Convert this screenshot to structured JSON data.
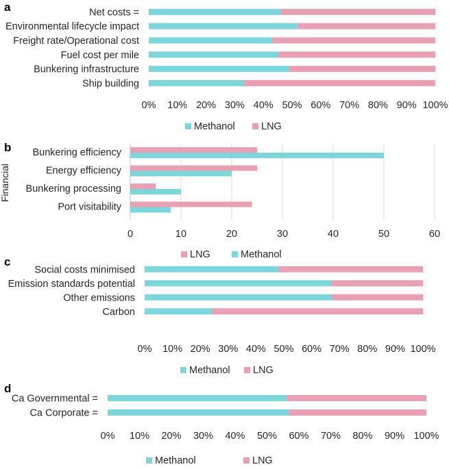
{
  "colors": {
    "methanol": "#7dd6dc",
    "lng": "#e8a0b5",
    "grid": "#d9d9d9",
    "axis": "#bfbfbf"
  },
  "chart_data": [
    {
      "panel": "a",
      "type": "bar",
      "orientation": "horizontal",
      "stacked": "percent",
      "categories": [
        "Net costs =",
        "Environmental lifecycle impact",
        "Freight rate/Operational cost",
        "Fuel cost per mile",
        "Bunkering infrastructure",
        "Ship building"
      ],
      "series": [
        {
          "name": "Methanol",
          "values": [
            46,
            52,
            43,
            45,
            49,
            33
          ]
        },
        {
          "name": "LNG",
          "values": [
            54,
            48,
            57,
            55,
            51,
            67
          ]
        }
      ],
      "xticks": [
        "0%",
        "10%",
        "20%",
        "30%",
        "40%",
        "50%",
        "60%",
        "70%",
        "80%",
        "90%",
        "100%"
      ],
      "legend": [
        "Methanol",
        "LNG"
      ],
      "xlim": [
        0,
        100
      ]
    },
    {
      "panel": "b",
      "type": "bar",
      "orientation": "horizontal",
      "stacked": false,
      "ylabel": "Financial",
      "categories": [
        "Bunkering efficiency",
        "Energy efficiency",
        "Bunkering processing",
        "Port visitability"
      ],
      "series": [
        {
          "name": "LNG",
          "values": [
            25,
            25,
            5,
            24
          ]
        },
        {
          "name": "Methanol",
          "values": [
            50,
            20,
            10,
            8
          ]
        }
      ],
      "xticks": [
        "0",
        "10",
        "20",
        "30",
        "40",
        "50",
        "60"
      ],
      "legend": [
        "LNG",
        "Methanol"
      ],
      "xlim": [
        0,
        60
      ]
    },
    {
      "panel": "c",
      "type": "bar",
      "orientation": "horizontal",
      "stacked": "percent",
      "categories": [
        "Social costs minimised",
        "Emission standards potential",
        "Other emissions",
        "Carbon"
      ],
      "series": [
        {
          "name": "Methanol",
          "values": [
            48,
            67,
            67,
            24
          ]
        },
        {
          "name": "LNG",
          "values": [
            52,
            33,
            33,
            76
          ]
        }
      ],
      "xticks": [
        "0%",
        "10%",
        "20%",
        "30%",
        "40%",
        "50%",
        "60%",
        "70%",
        "80%",
        "90%",
        "100%"
      ],
      "legend": [
        "Methanol",
        "LNG"
      ],
      "xlim": [
        0,
        100
      ]
    },
    {
      "panel": "d",
      "type": "bar",
      "orientation": "horizontal",
      "stacked": "percent",
      "categories": [
        "Ca Governmental =",
        "Ca Corporate ="
      ],
      "series": [
        {
          "name": "Methanol",
          "values": [
            56,
            57
          ]
        },
        {
          "name": "LNG",
          "values": [
            44,
            43
          ]
        }
      ],
      "xticks": [
        "0%",
        "10%",
        "20%",
        "30%",
        "40%",
        "50%",
        "60%",
        "70%",
        "80%",
        "90%",
        "100%"
      ],
      "legend": [
        "Methanol",
        "LNG"
      ],
      "xlim": [
        0,
        100
      ]
    }
  ]
}
